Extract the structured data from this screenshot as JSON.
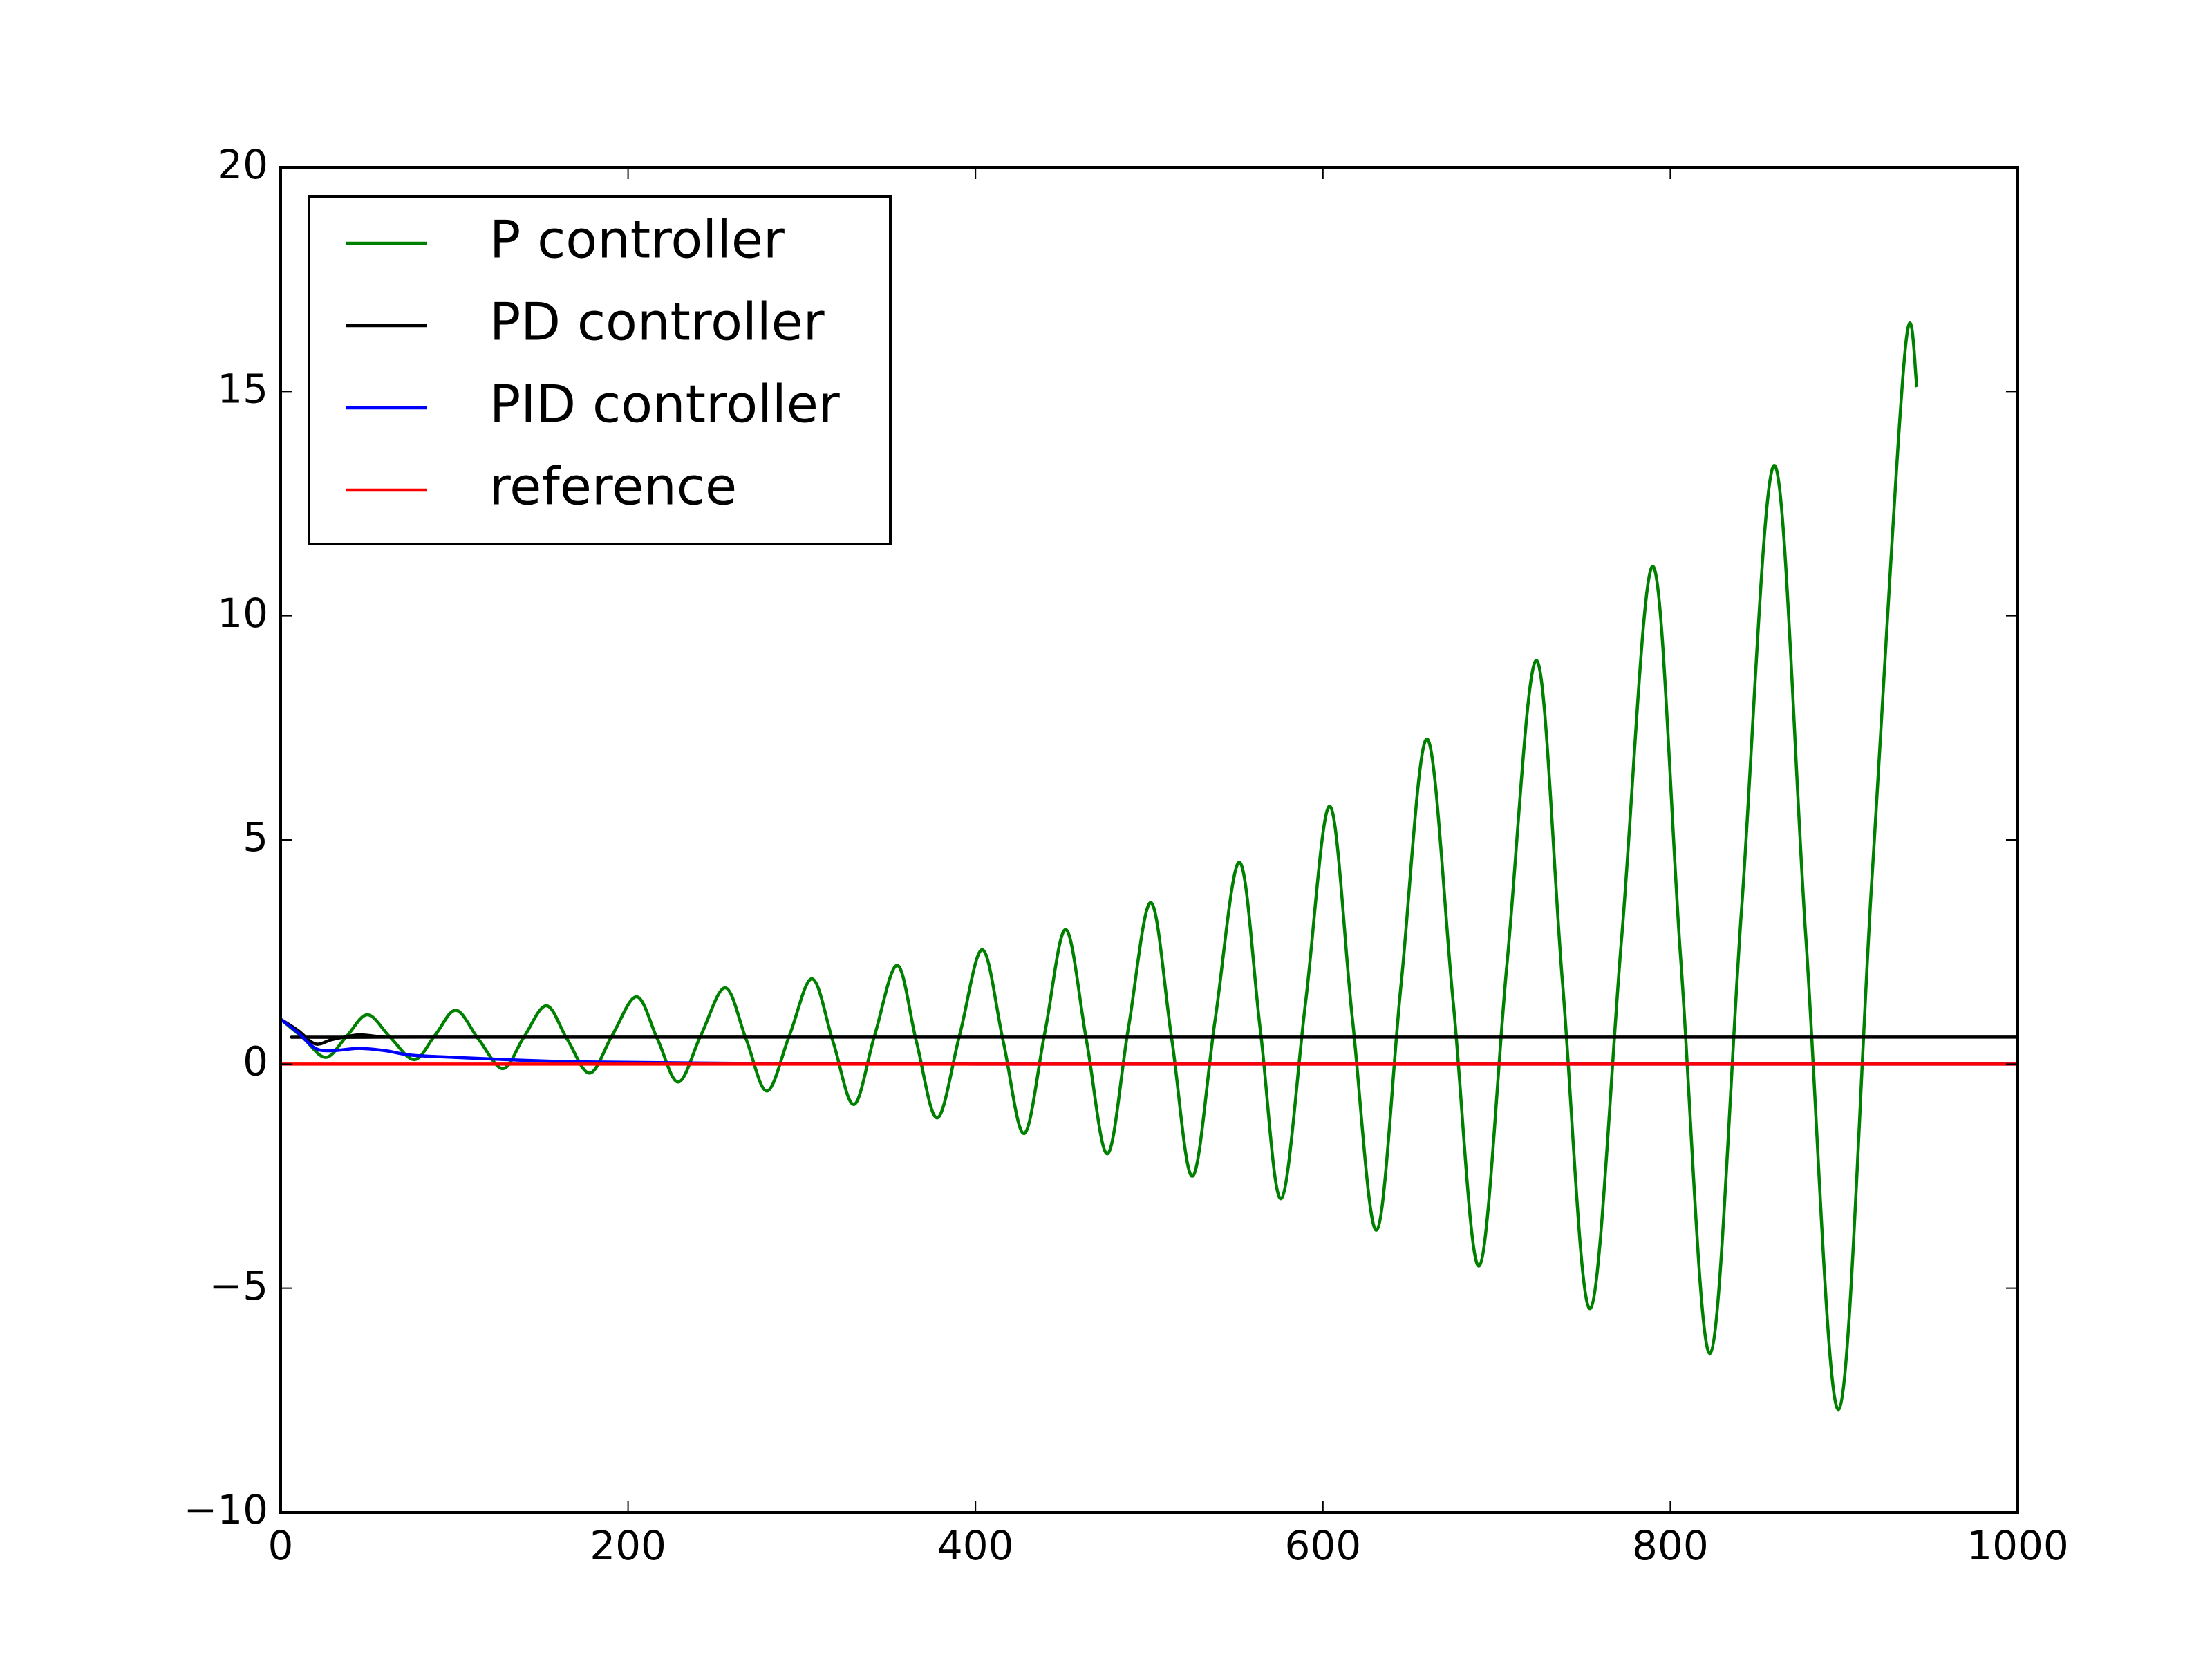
{
  "chart_data": {
    "type": "line",
    "xlim": [
      0,
      1000
    ],
    "xticks": [
      0,
      200,
      400,
      600,
      800,
      1000
    ],
    "ylim": [
      -10,
      20
    ],
    "yticks": [
      {
        "value": -10,
        "label": "−10"
      },
      {
        "value": -5,
        "label": "−5"
      },
      0,
      5,
      10,
      15,
      20
    ],
    "legend": "upper left",
    "series": [
      {
        "name": "P controller",
        "color": "#008000",
        "x": [
          0,
          13,
          26,
          38,
          50,
          63,
          77,
          89,
          101,
          114,
          128,
          140,
          153,
          165,
          178,
          191,
          205,
          217,
          229,
          242,
          256,
          268,
          280,
          293,
          306,
          318,
          330,
          342,
          355,
          366,
          378,
          391,
          404,
          416,
          428,
          440,
          452,
          464,
          476,
          488,
          501,
          513,
          525,
          538,
          552,
          564,
          576,
          590,
          604,
          617,
          631,
          645,
          660,
          675,
          690,
          706,
          723,
          738,
          754,
          772,
          790,
          806,
          823,
          841,
          860,
          878,
          897,
          916,
          935,
          942
        ],
        "values": [
          1.0,
          0.58,
          0.15,
          0.62,
          1.1,
          0.6,
          0.1,
          0.65,
          1.2,
          0.55,
          -0.1,
          0.6,
          1.3,
          0.55,
          -0.2,
          0.65,
          1.5,
          0.55,
          -0.4,
          0.65,
          1.7,
          0.55,
          -0.6,
          0.65,
          1.9,
          0.5,
          -0.9,
          0.65,
          2.2,
          0.5,
          -1.2,
          0.67,
          2.55,
          0.5,
          -1.55,
          0.72,
          3.0,
          0.5,
          -2.0,
          0.8,
          3.6,
          0.55,
          -2.5,
          1.0,
          4.5,
          0.75,
          -3.0,
          1.37,
          5.75,
          1.0,
          -3.7,
          1.78,
          7.25,
          1.38,
          -4.5,
          2.25,
          9.0,
          1.78,
          -5.45,
          2.83,
          11.1,
          2.33,
          -6.45,
          3.45,
          13.35,
          2.83,
          -7.7,
          4.1,
          15.85,
          15.1
        ]
      },
      {
        "name": "PD controller",
        "color": "#000000",
        "x": [
          0,
          10,
          20,
          30,
          45,
          60,
          80,
          1000
        ],
        "values": [
          1.0,
          0.75,
          0.45,
          0.55,
          0.65,
          0.6,
          0.6,
          0.6
        ]
      },
      {
        "name": "PID controller",
        "color": "#0000ff",
        "x": [
          0,
          10,
          20,
          30,
          45,
          60,
          75,
          100,
          130,
          170,
          250,
          400,
          1000
        ],
        "values": [
          1.0,
          0.7,
          0.35,
          0.3,
          0.35,
          0.3,
          0.2,
          0.15,
          0.1,
          0.05,
          0.02,
          0,
          0
        ]
      },
      {
        "name": "reference",
        "color": "#ff0000",
        "x": [
          0,
          1000
        ],
        "values": [
          0,
          0
        ]
      }
    ]
  }
}
